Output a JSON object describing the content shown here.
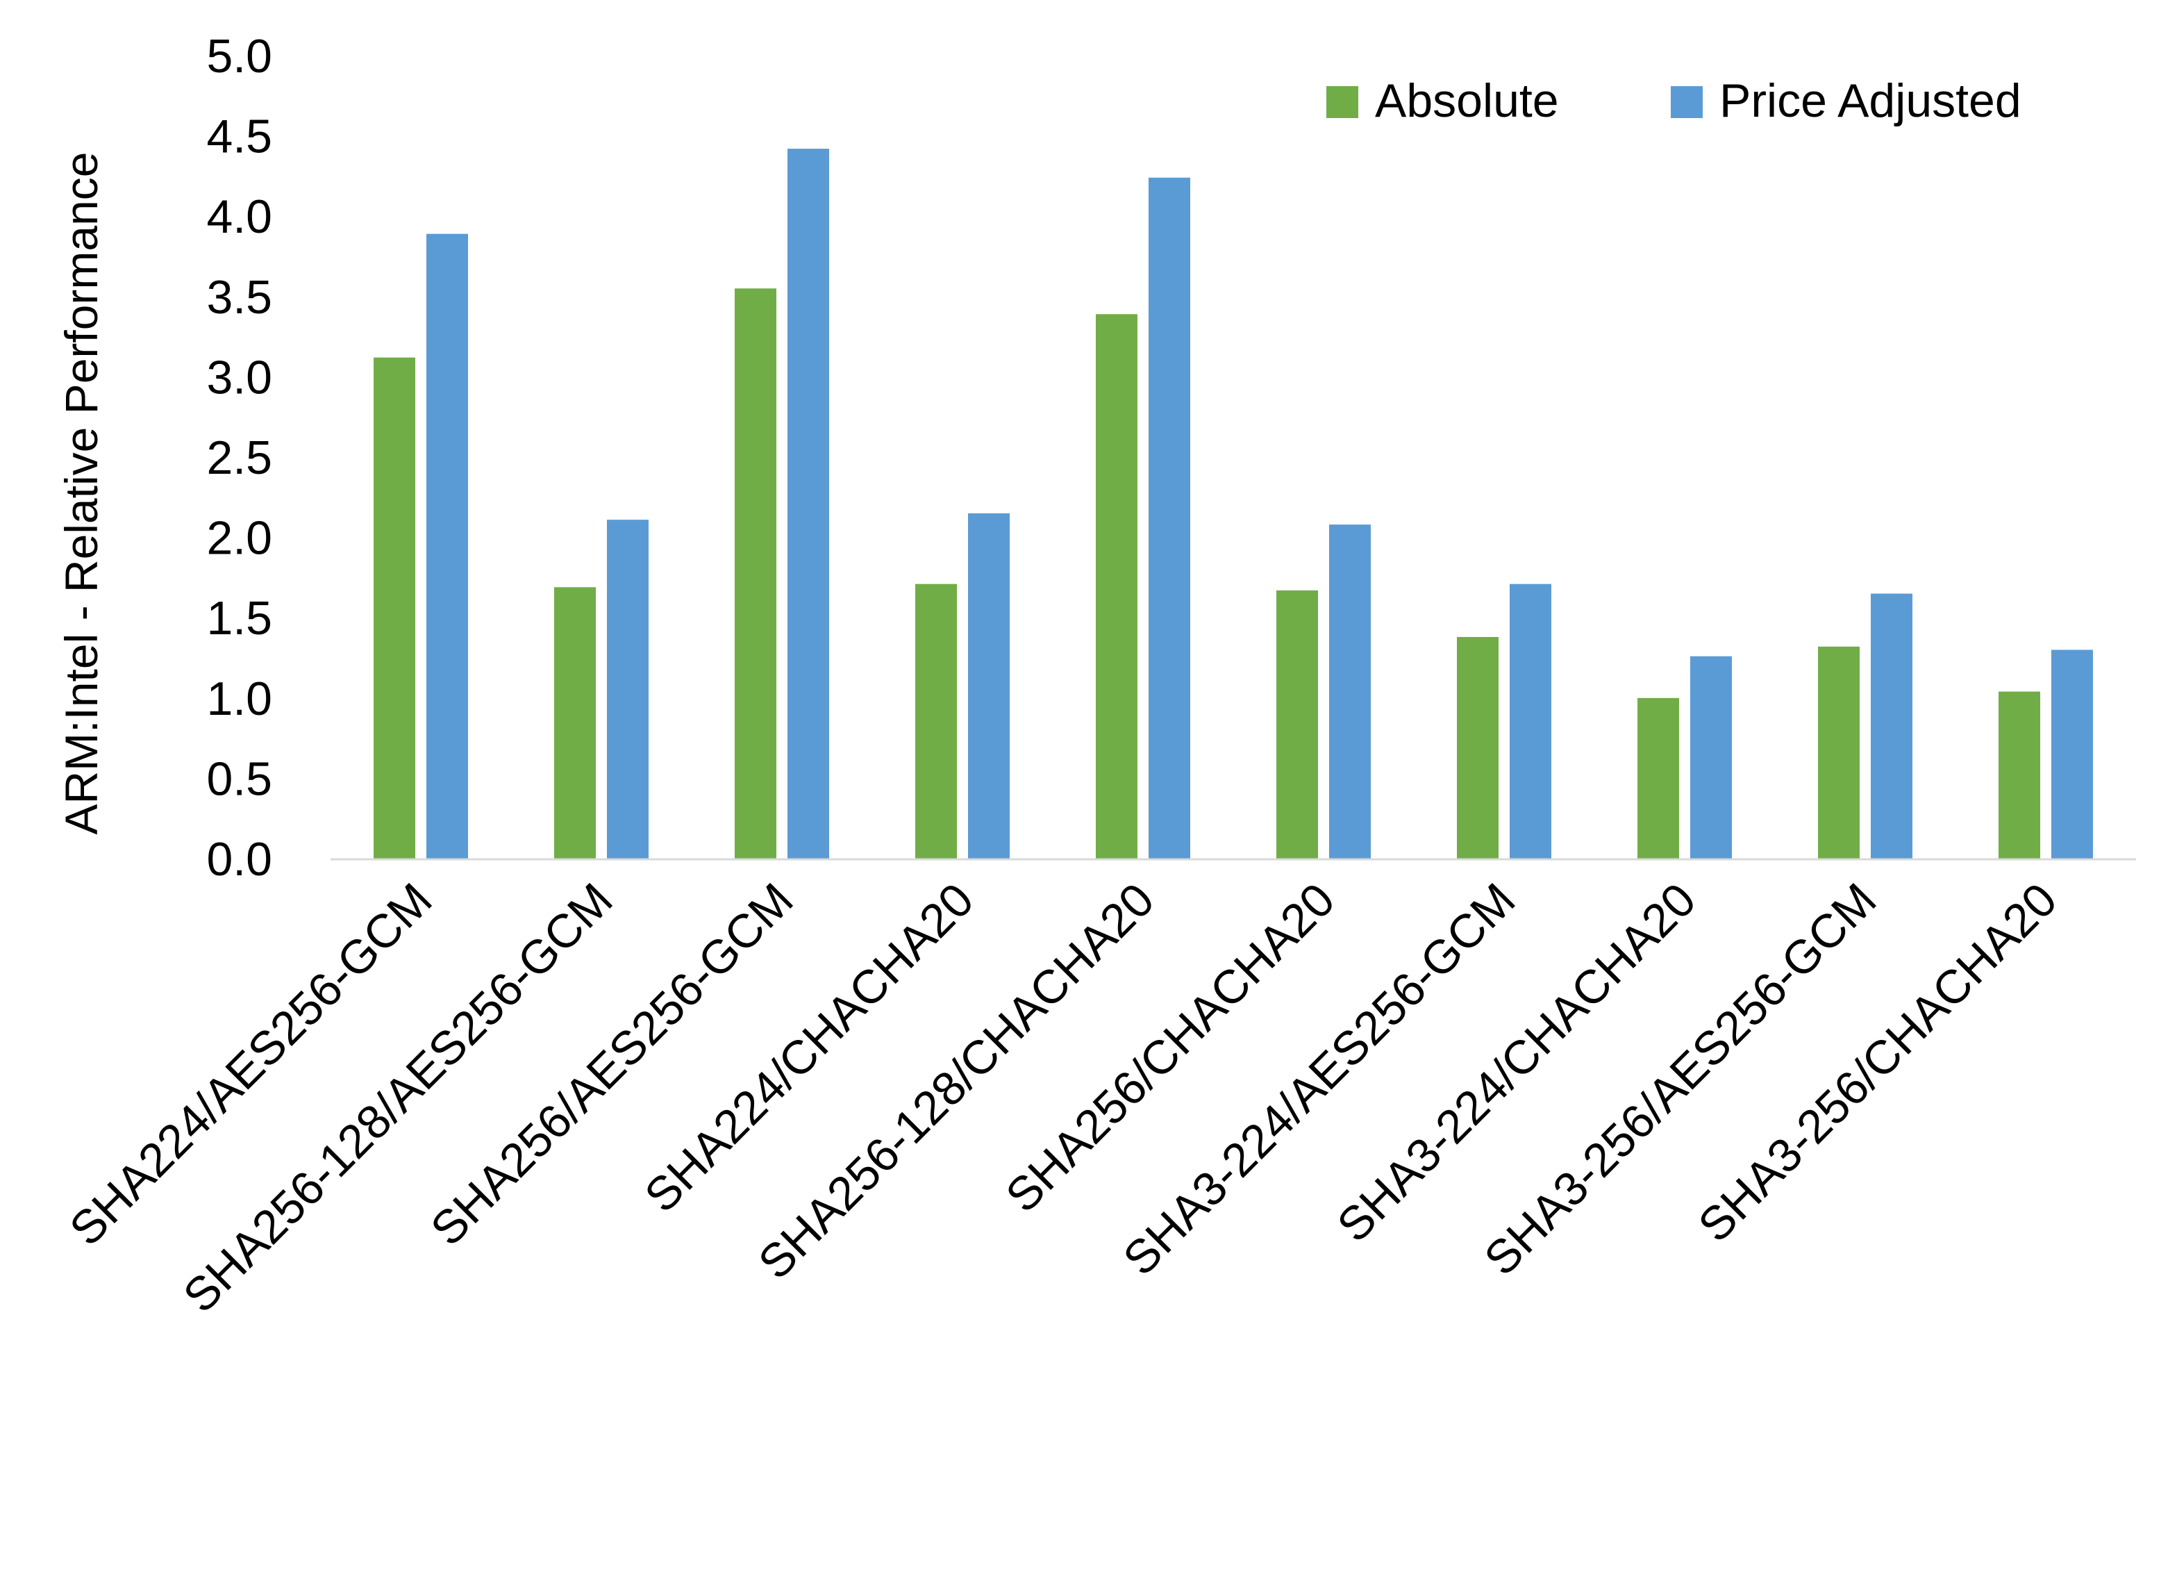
{
  "chart_data": {
    "type": "bar",
    "title": "",
    "xlabel": "",
    "ylabel": "ARM:Intel - Relative Performance",
    "ylim": [
      0,
      5
    ],
    "yticks": [
      "0.0",
      "0.5",
      "1.0",
      "1.5",
      "2.0",
      "2.5",
      "3.0",
      "3.5",
      "4.0",
      "4.5",
      "5.0"
    ],
    "grid": false,
    "legend_position": "top-right",
    "categories": [
      "SHA224/AES256-GCM",
      "SHA256-128/AES256-GCM",
      "SHA256/AES256-GCM",
      "SHA224/CHACHA20",
      "SHA256-128/CHACHA20",
      "SHA256/CHACHA20",
      "SHA3-224/AES256-GCM",
      "SHA3-224/CHACHA20",
      "SHA3-256/AES256-GCM",
      "SHA3-256/CHACHA20"
    ],
    "series": [
      {
        "name": "Absolute",
        "color": "#70AD47",
        "values": [
          3.12,
          1.69,
          3.55,
          1.71,
          3.39,
          1.67,
          1.38,
          1.0,
          1.32,
          1.04
        ]
      },
      {
        "name": "Price Adjusted",
        "color": "#5B9BD5",
        "values": [
          3.89,
          2.11,
          4.42,
          2.15,
          4.24,
          2.08,
          1.71,
          1.26,
          1.65,
          1.3
        ]
      }
    ]
  }
}
